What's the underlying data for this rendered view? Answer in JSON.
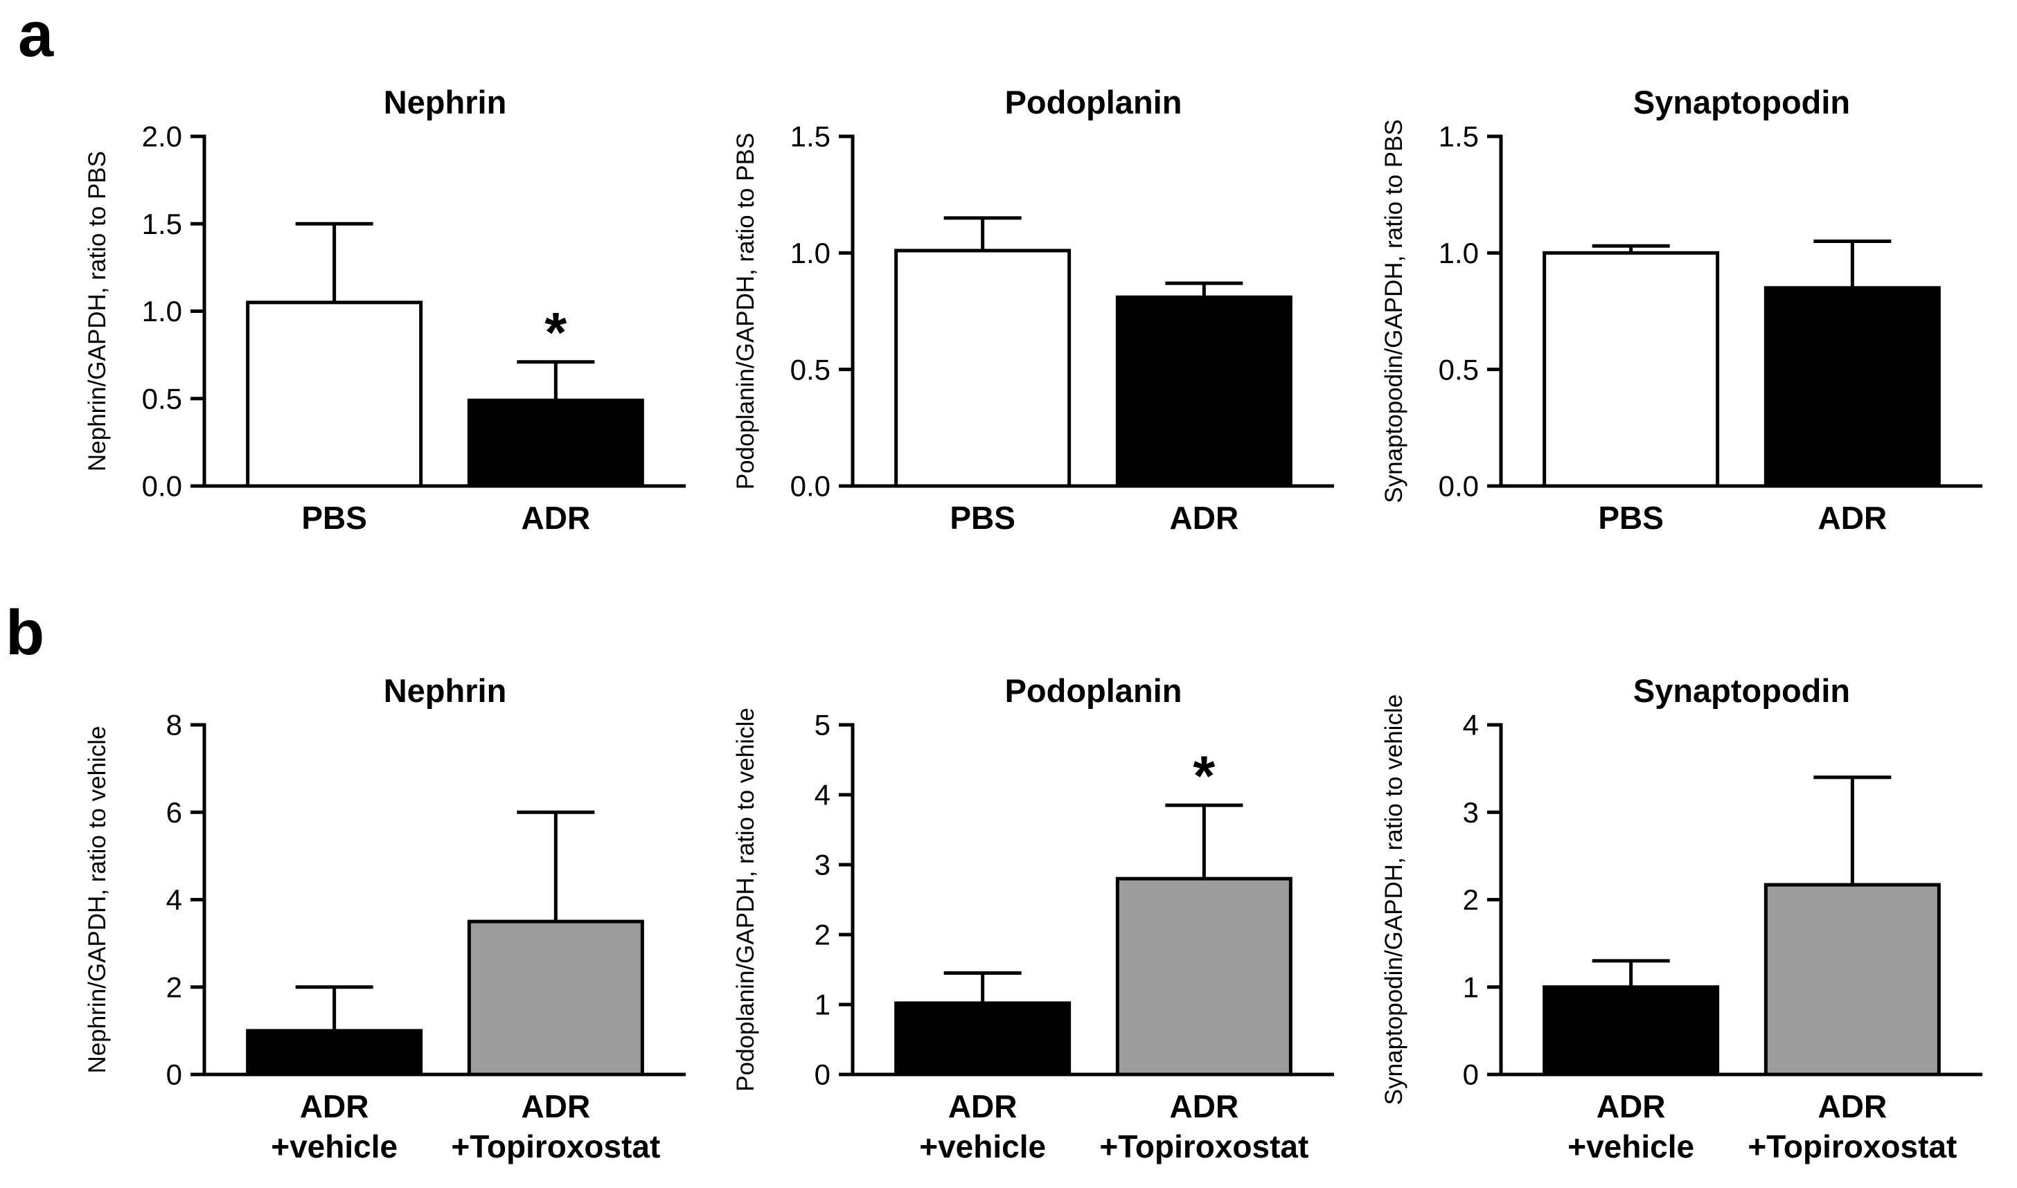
{
  "panels": {
    "a": "a",
    "b": "b"
  },
  "colors": {
    "background": "#ffffff",
    "axis": "#000000",
    "bar_white": "#ffffff",
    "bar_black": "#000000",
    "bar_gray": "#9c9c9c"
  },
  "chart_data": [
    {
      "panel": "a",
      "type": "bar",
      "title": "Nephrin",
      "ylabel": "Nephrin/GAPDH, ratio to PBS",
      "categories": [
        [
          "PBS"
        ],
        [
          "ADR"
        ]
      ],
      "values": [
        1.05,
        0.49
      ],
      "errors_sd": [
        0.45,
        0.22
      ],
      "bar_colors": [
        "#ffffff",
        "#000000"
      ],
      "ylim": [
        0,
        2
      ],
      "yticks": [
        0,
        0.5,
        1,
        1.5,
        2
      ],
      "ytick_labels": [
        "0.0",
        "0.5",
        "1.0",
        "1.5",
        "2.0"
      ],
      "significance": [
        "",
        "*"
      ],
      "grid": "off",
      "legend": "none"
    },
    {
      "panel": "a",
      "type": "bar",
      "title": "Podoplanin",
      "ylabel": "Podoplanin/GAPDH, ratio to PBS",
      "categories": [
        [
          "PBS"
        ],
        [
          "ADR"
        ]
      ],
      "values": [
        1.01,
        0.81
      ],
      "errors_sd": [
        0.14,
        0.06
      ],
      "bar_colors": [
        "#ffffff",
        "#000000"
      ],
      "ylim": [
        0,
        1.5
      ],
      "yticks": [
        0,
        0.5,
        1,
        1.5
      ],
      "ytick_labels": [
        "0.0",
        "0.5",
        "1.0",
        "1.5"
      ],
      "significance": [
        "",
        ""
      ],
      "grid": "off",
      "legend": "none"
    },
    {
      "panel": "a",
      "type": "bar",
      "title": "Synaptopodin",
      "ylabel": "Synaptopodin/GAPDH, ratio to PBS",
      "categories": [
        [
          "PBS"
        ],
        [
          "ADR"
        ]
      ],
      "values": [
        1.0,
        0.85
      ],
      "errors_sd": [
        0.03,
        0.2
      ],
      "bar_colors": [
        "#ffffff",
        "#000000"
      ],
      "ylim": [
        0,
        1.5
      ],
      "yticks": [
        0,
        0.5,
        1,
        1.5
      ],
      "ytick_labels": [
        "0.0",
        "0.5",
        "1.0",
        "1.5"
      ],
      "significance": [
        "",
        ""
      ],
      "grid": "off",
      "legend": "none"
    },
    {
      "panel": "b",
      "type": "bar",
      "title": "Nephrin",
      "ylabel": "Nephrin/GAPDH, ratio to vehicle",
      "categories": [
        [
          "ADR",
          "+vehicle"
        ],
        [
          "ADR",
          "+Topiroxostat"
        ]
      ],
      "values": [
        1.0,
        3.5
      ],
      "errors_sd": [
        1.0,
        2.5
      ],
      "bar_colors": [
        "#000000",
        "#9c9c9c"
      ],
      "ylim": [
        0,
        8
      ],
      "yticks": [
        0,
        2,
        4,
        6,
        8
      ],
      "ytick_labels": [
        "0",
        "2",
        "4",
        "6",
        "8"
      ],
      "significance": [
        "",
        ""
      ],
      "grid": "off",
      "legend": "none"
    },
    {
      "panel": "b",
      "type": "bar",
      "title": "Podoplanin",
      "ylabel": "Podoplanin/GAPDH, ratio to vehicle",
      "categories": [
        [
          "ADR",
          "+vehicle"
        ],
        [
          "ADR",
          "+Topiroxostat"
        ]
      ],
      "values": [
        1.02,
        2.8
      ],
      "errors_sd": [
        0.43,
        1.05
      ],
      "bar_colors": [
        "#000000",
        "#9c9c9c"
      ],
      "ylim": [
        0,
        5
      ],
      "yticks": [
        0,
        1,
        2,
        3,
        4,
        5
      ],
      "ytick_labels": [
        "0",
        "1",
        "2",
        "3",
        "4",
        "5"
      ],
      "significance": [
        "",
        "*"
      ],
      "grid": "off",
      "legend": "none"
    },
    {
      "panel": "b",
      "type": "bar",
      "title": "Synaptopodin",
      "ylabel": "Synaptopodin/GAPDH, ratio to vehicle",
      "categories": [
        [
          "ADR",
          "+vehicle"
        ],
        [
          "ADR",
          "+Topiroxostat"
        ]
      ],
      "values": [
        1.0,
        2.17
      ],
      "errors_sd": [
        0.3,
        1.23
      ],
      "bar_colors": [
        "#000000",
        "#9c9c9c"
      ],
      "ylim": [
        0,
        4
      ],
      "yticks": [
        0,
        1,
        2,
        3,
        4
      ],
      "ytick_labels": [
        "0",
        "1",
        "2",
        "3",
        "4"
      ],
      "significance": [
        "",
        ""
      ],
      "grid": "off",
      "legend": "none"
    }
  ]
}
